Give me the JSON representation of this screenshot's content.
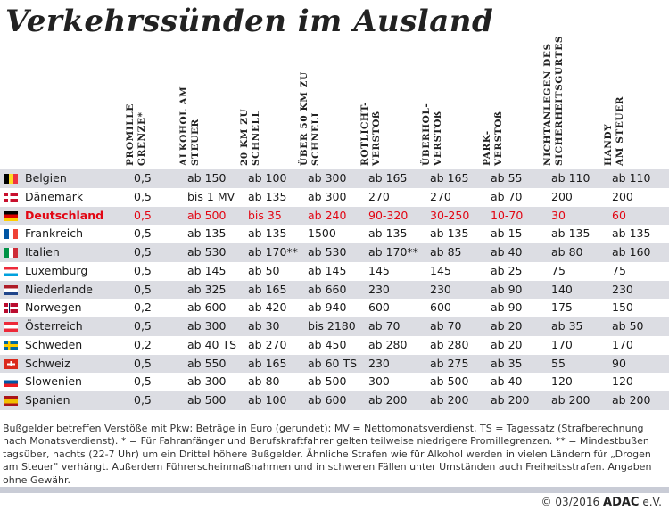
{
  "title": "Verkehrssünden im Ausland",
  "columns": [
    "PROMILLE\nGRENZE*",
    "ALKOHOL AM\nSTEUER",
    "20 KM ZU\nSCHNELL",
    "ÜBER 50 KM ZU\nSCHNELL",
    "ROTLICHT-\nVERSTOß",
    "ÜBERHOL-\nVERSTOß",
    "PARK-\nVERSTOß",
    "NICHTANLEGEN DES\nSICHERHEITSGURTES",
    "HANDY\nAM STEUER"
  ],
  "rows": [
    {
      "country": "Belgien",
      "flag": "be",
      "values": [
        "0,5",
        "ab 150",
        "ab 100",
        "ab 300",
        "ab 165",
        "ab 165",
        "ab 55",
        "ab 110",
        "ab 110"
      ]
    },
    {
      "country": "Dänemark",
      "flag": "dk",
      "values": [
        "0,5",
        "bis 1 MV",
        "ab 135",
        "ab 300",
        "270",
        "270",
        "ab 70",
        "200",
        "200"
      ]
    },
    {
      "country": "Deutschland",
      "flag": "de",
      "highlight": true,
      "values": [
        "0,5",
        "ab 500",
        "bis 35",
        "ab 240",
        "90-320",
        "30-250",
        "10-70",
        "30",
        "60"
      ]
    },
    {
      "country": "Frankreich",
      "flag": "fr",
      "values": [
        "0,5",
        "ab 135",
        "ab 135",
        "1500",
        "ab 135",
        "ab 135",
        "ab 15",
        "ab 135",
        "ab 135"
      ]
    },
    {
      "country": "Italien",
      "flag": "it",
      "values": [
        "0,5",
        "ab 530",
        "ab 170**",
        "ab 530",
        "ab 170**",
        "ab 85",
        "ab 40",
        "ab 80",
        "ab 160"
      ]
    },
    {
      "country": "Luxemburg",
      "flag": "lu",
      "values": [
        "0,5",
        "ab 145",
        "ab 50",
        "ab 145",
        "145",
        "145",
        "ab 25",
        "75",
        "75"
      ]
    },
    {
      "country": "Niederlande",
      "flag": "nl",
      "values": [
        "0,5",
        "ab 325",
        "ab 165",
        "ab 660",
        "230",
        "230",
        "ab 90",
        "140",
        "230"
      ]
    },
    {
      "country": "Norwegen",
      "flag": "no",
      "values": [
        "0,2",
        "ab 600",
        "ab 420",
        "ab 940",
        "600",
        "600",
        "ab 90",
        "175",
        "150"
      ]
    },
    {
      "country": "Österreich",
      "flag": "at",
      "values": [
        "0,5",
        "ab 300",
        "ab 30",
        "bis 2180",
        "ab 70",
        "ab 70",
        "ab 20",
        "ab 35",
        "ab 50"
      ]
    },
    {
      "country": "Schweden",
      "flag": "se",
      "values": [
        "0,2",
        "ab 40 TS",
        "ab 270",
        "ab 450",
        "ab 280",
        "ab 280",
        "ab 20",
        "170",
        "170"
      ]
    },
    {
      "country": "Schweiz",
      "flag": "ch",
      "values": [
        "0,5",
        "ab 550",
        "ab 165",
        "ab 60 TS",
        "230",
        "ab 275",
        "ab 35",
        "55",
        "90"
      ]
    },
    {
      "country": "Slowenien",
      "flag": "si",
      "values": [
        "0,5",
        "ab 300",
        "ab 80",
        "ab 500",
        "300",
        "ab 500",
        "ab 40",
        "120",
        "120"
      ]
    },
    {
      "country": "Spanien",
      "flag": "es",
      "values": [
        "0,5",
        "ab 500",
        "ab 100",
        "ab 600",
        "ab 200",
        "ab 200",
        "ab 200",
        "ab 200",
        "ab 200"
      ]
    }
  ],
  "footnote": "Bußgelder betreffen Verstöße mit Pkw; Beträge in Euro (gerundet); MV = Nettomonatsverdienst, TS = Tagessatz (Strafberechnung nach Monatsverdienst). * = Für Fahranfänger und Berufskraftfahrer gelten teilweise niedrigere Promillegrenzen. ** = Mindestbußen tagsüber, nachts (22-7 Uhr) um ein Drittel höhere Bußgelder. Ähnliche Strafen wie für Alkohol werden in vielen Ländern für „Drogen am Steuer\" verhängt. Außerdem Führerscheinmaßnahmen und in schweren Fällen unter Umständen auch Freiheitsstrafen. Angaben ohne Gewähr.",
  "credit": {
    "copyright": "©  03/2016",
    "brand": "ADAC",
    "suffix": "e.V."
  },
  "colors": {
    "highlight": "#e20613",
    "stripe": "#dcdde3"
  }
}
